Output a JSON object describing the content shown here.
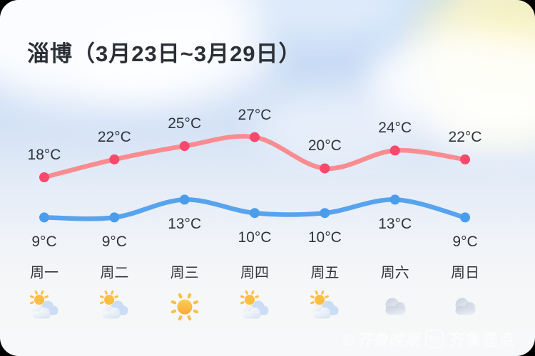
{
  "title": "淄博（3月23日~3月29日）",
  "chart_data": {
    "type": "line",
    "title": "淄博（3月23日~3月29日）",
    "categories": [
      "周一",
      "周二",
      "周三",
      "周四",
      "周五",
      "周六",
      "周日"
    ],
    "unit": "°C",
    "series": [
      {
        "name": "high",
        "color": "#FA8C90",
        "dot_color": "#F9486E",
        "label_position": "above",
        "values": [
          18,
          22,
          25,
          27,
          20,
          24,
          22
        ]
      },
      {
        "name": "low",
        "color": "#57A3EE",
        "dot_color": "#4B9DEC",
        "label_position": "below",
        "values": [
          9,
          9,
          13,
          10,
          10,
          13,
          9
        ]
      }
    ],
    "ylim": [
      5,
      30
    ],
    "grid": false,
    "legend": "none",
    "annotations": [
      "18°C",
      "22°C",
      "25°C",
      "27°C",
      "20°C",
      "24°C",
      "22°C",
      "9°C",
      "9°C",
      "13°C",
      "10°C",
      "10°C",
      "13°C",
      "9°C"
    ]
  },
  "icons": [
    "partly-cloudy",
    "partly-cloudy",
    "sunny",
    "partly-cloudy",
    "partly-cloudy",
    "cloudy",
    "cloudy"
  ],
  "watermark": {
    "newspaper": "©齐鲁晚报",
    "badge": "壹点",
    "brand": "齐鲁壹点"
  },
  "colors": {
    "title_text": "#2B2F36",
    "label_text": "#33363C",
    "sky_top": "#BED8F6",
    "sky_bottom": "#F6F7F8",
    "high_line": "#FA8C90",
    "high_dot": "#F9486E",
    "low_line": "#57A3EE",
    "sun_icon": "#F7A83C",
    "cloud_icon": "#CBD4E1"
  }
}
